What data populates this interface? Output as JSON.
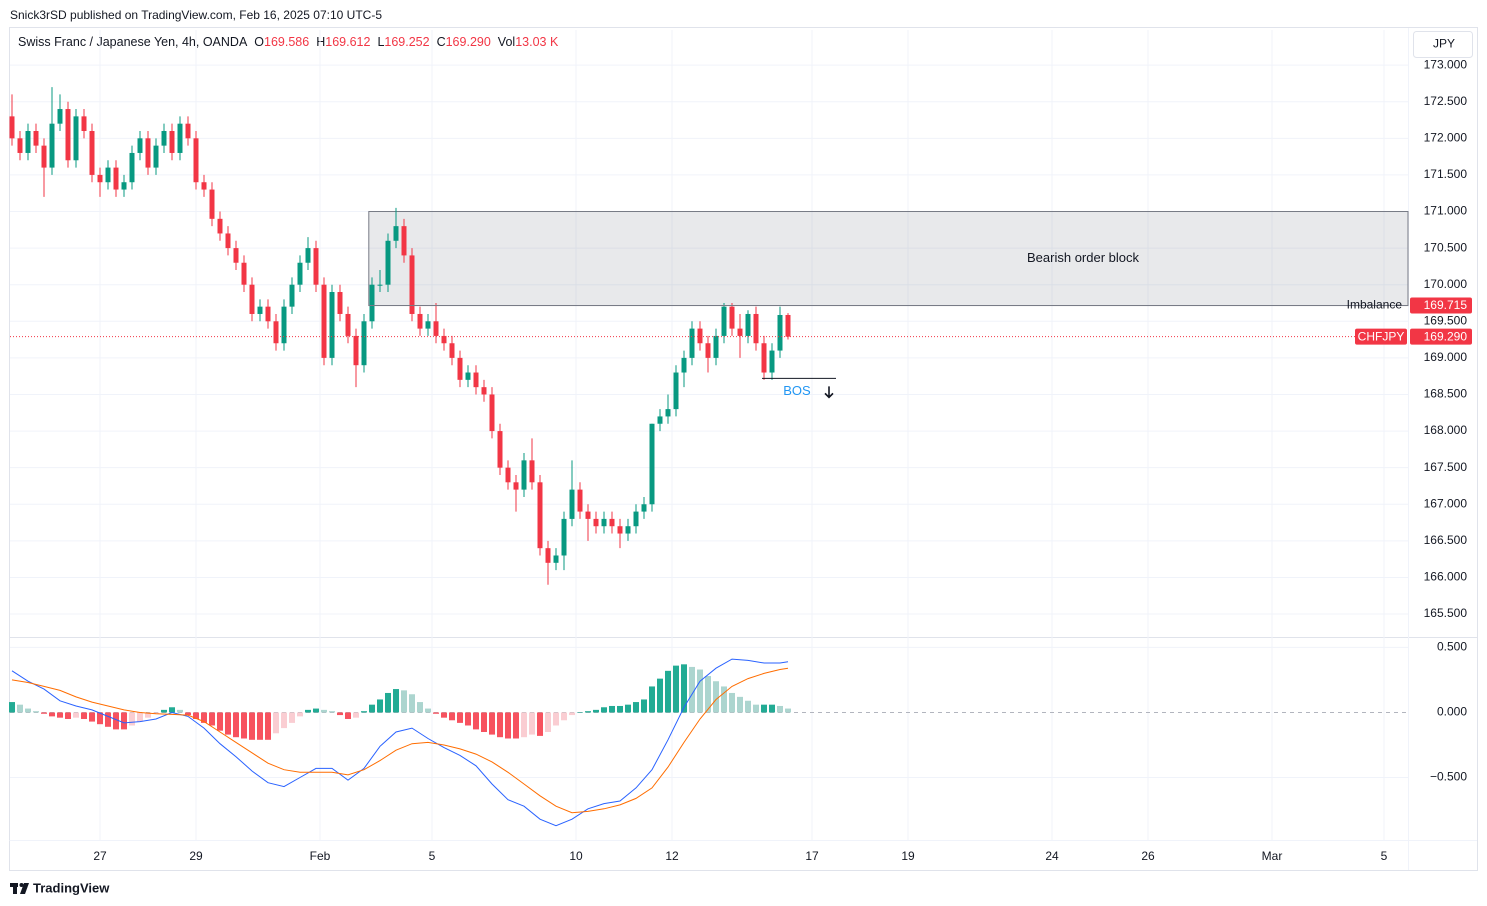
{
  "header": "Snick3rSD published on TradingView.com, Feb 16, 2025 07:10 UTC-5",
  "footer": "TradingView",
  "chart_data": {
    "type": "candlestick",
    "title": "Swiss Franc / Japanese Yen, 4h, OANDA",
    "legend": [
      {
        "key": "O",
        "value": "169.586"
      },
      {
        "key": "H",
        "value": "169.612"
      },
      {
        "key": "L",
        "value": "169.252"
      },
      {
        "key": "C",
        "value": "169.290"
      },
      {
        "key": "Vol",
        "value": "13.03 K"
      }
    ],
    "currency": "JPY",
    "up_color": "#089981",
    "down_color": "#f23645",
    "grid": true,
    "candles": [
      [
        172.3,
        172.6,
        171.9,
        172.0
      ],
      [
        172.0,
        172.1,
        171.7,
        171.8
      ],
      [
        171.8,
        172.2,
        171.7,
        172.1
      ],
      [
        172.1,
        172.2,
        171.8,
        171.9
      ],
      [
        171.9,
        172.0,
        171.2,
        171.6
      ],
      [
        171.6,
        172.7,
        171.5,
        172.2
      ],
      [
        172.2,
        172.6,
        172.1,
        172.4
      ],
      [
        172.4,
        172.5,
        171.6,
        171.7
      ],
      [
        171.7,
        172.4,
        171.6,
        172.3
      ],
      [
        172.3,
        172.4,
        172.0,
        172.1
      ],
      [
        172.1,
        172.2,
        171.4,
        171.5
      ],
      [
        171.5,
        171.6,
        171.2,
        171.4
      ],
      [
        171.4,
        171.7,
        171.3,
        171.6
      ],
      [
        171.6,
        171.7,
        171.2,
        171.3
      ],
      [
        171.3,
        171.5,
        171.2,
        171.4
      ],
      [
        171.4,
        171.9,
        171.3,
        171.8
      ],
      [
        171.8,
        172.1,
        171.7,
        172.0
      ],
      [
        172.0,
        172.1,
        171.5,
        171.6
      ],
      [
        171.6,
        172.0,
        171.5,
        171.9
      ],
      [
        171.9,
        172.2,
        171.8,
        172.1
      ],
      [
        172.1,
        172.2,
        171.7,
        171.8
      ],
      [
        171.8,
        172.3,
        171.7,
        172.2
      ],
      [
        172.2,
        172.3,
        171.9,
        172.0
      ],
      [
        172.0,
        172.1,
        171.3,
        171.4
      ],
      [
        171.4,
        171.5,
        171.2,
        171.3
      ],
      [
        171.3,
        171.4,
        170.8,
        170.9
      ],
      [
        170.9,
        171.0,
        170.6,
        170.7
      ],
      [
        170.7,
        170.8,
        170.4,
        170.5
      ],
      [
        170.5,
        170.6,
        170.2,
        170.3
      ],
      [
        170.3,
        170.4,
        169.9,
        170.0
      ],
      [
        170.0,
        170.1,
        169.5,
        169.6
      ],
      [
        169.6,
        169.8,
        169.5,
        169.7
      ],
      [
        169.7,
        169.8,
        169.4,
        169.5
      ],
      [
        169.5,
        169.6,
        169.1,
        169.2
      ],
      [
        169.2,
        169.8,
        169.1,
        169.7
      ],
      [
        169.7,
        170.1,
        169.6,
        170.0
      ],
      [
        170.0,
        170.4,
        169.9,
        170.3
      ],
      [
        170.3,
        170.65,
        170.2,
        170.5
      ],
      [
        170.5,
        170.6,
        169.9,
        170.0
      ],
      [
        170.0,
        170.1,
        168.9,
        169.0
      ],
      [
        169.0,
        170.0,
        168.9,
        169.9
      ],
      [
        169.9,
        170.0,
        169.5,
        169.6
      ],
      [
        169.6,
        169.7,
        169.2,
        169.3
      ],
      [
        169.3,
        169.4,
        168.6,
        168.9
      ],
      [
        168.9,
        169.6,
        168.8,
        169.5
      ],
      [
        169.5,
        170.1,
        169.4,
        170.0
      ],
      [
        170.0,
        170.2,
        169.9,
        170.0
      ],
      [
        170.0,
        170.7,
        169.9,
        170.6
      ],
      [
        170.6,
        171.05,
        170.5,
        170.8
      ],
      [
        170.8,
        170.9,
        170.3,
        170.4
      ],
      [
        170.4,
        170.5,
        169.5,
        169.6
      ],
      [
        169.6,
        169.7,
        169.3,
        169.4
      ],
      [
        169.4,
        169.6,
        169.3,
        169.5
      ],
      [
        169.5,
        169.75,
        169.2,
        169.3
      ],
      [
        169.3,
        169.4,
        169.1,
        169.2
      ],
      [
        169.2,
        169.3,
        168.9,
        169.0
      ],
      [
        169.0,
        169.1,
        168.6,
        168.7
      ],
      [
        168.7,
        168.9,
        168.6,
        168.8
      ],
      [
        168.8,
        168.9,
        168.5,
        168.6
      ],
      [
        168.6,
        168.7,
        168.4,
        168.5
      ],
      [
        168.5,
        168.6,
        167.9,
        168.0
      ],
      [
        168.0,
        168.1,
        167.4,
        167.5
      ],
      [
        167.5,
        167.6,
        167.2,
        167.3
      ],
      [
        167.3,
        167.4,
        166.9,
        167.2
      ],
      [
        167.2,
        167.7,
        167.1,
        167.6
      ],
      [
        167.6,
        167.9,
        167.2,
        167.3
      ],
      [
        167.3,
        167.4,
        166.3,
        166.4
      ],
      [
        166.4,
        166.5,
        165.9,
        166.2
      ],
      [
        166.2,
        166.4,
        166.1,
        166.3
      ],
      [
        166.3,
        166.9,
        166.1,
        166.8
      ],
      [
        166.8,
        167.6,
        166.7,
        167.2
      ],
      [
        167.2,
        167.3,
        166.8,
        166.9
      ],
      [
        166.9,
        167.0,
        166.5,
        166.8
      ],
      [
        166.8,
        166.9,
        166.6,
        166.7
      ],
      [
        166.7,
        166.9,
        166.6,
        166.8
      ],
      [
        166.8,
        166.9,
        166.6,
        166.7
      ],
      [
        166.7,
        166.8,
        166.4,
        166.6
      ],
      [
        166.6,
        166.8,
        166.5,
        166.7
      ],
      [
        166.7,
        167.0,
        166.6,
        166.9
      ],
      [
        166.9,
        167.1,
        166.8,
        167.0
      ],
      [
        167.0,
        168.1,
        166.9,
        168.1
      ],
      [
        168.1,
        168.3,
        168.0,
        168.2
      ],
      [
        168.2,
        168.5,
        168.1,
        168.3
      ],
      [
        168.3,
        168.9,
        168.2,
        168.8
      ],
      [
        168.8,
        169.1,
        168.6,
        169.0
      ],
      [
        169.0,
        169.5,
        168.9,
        169.4
      ],
      [
        169.4,
        169.5,
        169.1,
        169.2
      ],
      [
        169.2,
        169.3,
        168.8,
        169.0
      ],
      [
        169.0,
        169.4,
        168.9,
        169.3
      ],
      [
        169.3,
        169.75,
        169.2,
        169.7
      ],
      [
        169.7,
        169.75,
        169.3,
        169.4
      ],
      [
        169.4,
        169.6,
        169.0,
        169.3
      ],
      [
        169.3,
        169.65,
        169.2,
        169.6
      ],
      [
        169.6,
        169.7,
        169.1,
        169.2
      ],
      [
        169.2,
        169.3,
        168.7,
        168.8
      ],
      [
        168.8,
        169.2,
        168.7,
        169.1
      ],
      [
        169.1,
        169.7,
        169.0,
        169.586
      ],
      [
        169.586,
        169.612,
        169.252,
        169.29
      ]
    ],
    "xlim": [
      -0.25,
      174.5
    ],
    "xticks": [
      {
        "value": 11,
        "label": "27"
      },
      {
        "value": 23,
        "label": "29"
      },
      {
        "value": 38.5,
        "label": "Feb"
      },
      {
        "value": 52.5,
        "label": "5"
      },
      {
        "value": 70.5,
        "label": "10"
      },
      {
        "value": 82.5,
        "label": "12"
      },
      {
        "value": 100,
        "label": "17"
      },
      {
        "value": 112,
        "label": "19"
      },
      {
        "value": 130,
        "label": "24"
      },
      {
        "value": 142,
        "label": "26"
      },
      {
        "value": 157.5,
        "label": "Mar"
      },
      {
        "value": 171.5,
        "label": "5"
      }
    ],
    "ylim": [
      165.2,
      173.48
    ],
    "yticks": [
      {
        "value": 165.5,
        "label": "165.500"
      },
      {
        "value": 166,
        "label": "166.000"
      },
      {
        "value": 166.5,
        "label": "166.500"
      },
      {
        "value": 167,
        "label": "167.000"
      },
      {
        "value": 167.5,
        "label": "167.500"
      },
      {
        "value": 168,
        "label": "168.000"
      },
      {
        "value": 168.5,
        "label": "168.500"
      },
      {
        "value": 169,
        "label": "169.000"
      },
      {
        "value": 169.5,
        "label": "169.500"
      },
      {
        "value": 170,
        "label": "170.000"
      },
      {
        "value": 170.5,
        "label": "170.500"
      },
      {
        "value": 171,
        "label": "171.000"
      },
      {
        "value": 171.5,
        "label": "171.500"
      },
      {
        "value": 172,
        "label": "172.000"
      },
      {
        "value": 172.5,
        "label": "172.500"
      },
      {
        "value": 173,
        "label": "173.000"
      }
    ],
    "order_block": {
      "label": "Bearish order block",
      "top": 171.0,
      "bottom": 169.715,
      "x_start": 44.6
    },
    "imbalance": {
      "name": "Imbalance",
      "value": 169.715,
      "label": "169.715",
      "color": "#f23645"
    },
    "last_price": {
      "symbol": "CHFJPY",
      "value": 169.29,
      "label": "169.290",
      "color": "#f23645"
    },
    "bos": {
      "label": "BOS",
      "value": 168.72,
      "x_start": 93.75,
      "x_end": 103,
      "color": "#2196f3"
    },
    "macd": {
      "ylim": [
        -0.98,
        0.58
      ],
      "yticks": [
        {
          "value": 0.5,
          "label": "0.500"
        },
        {
          "value": 0,
          "label": "0.000"
        },
        {
          "value": -0.5,
          "label": "−0.500"
        }
      ],
      "histogram_colors": [
        "#22ab94",
        "#acd5cf",
        "#f7525f",
        "#facdd2"
      ],
      "histogram": [
        0.08,
        0.06,
        0.03,
        0.01,
        -0.01,
        -0.03,
        -0.04,
        -0.05,
        -0.04,
        -0.05,
        -0.07,
        -0.09,
        -0.11,
        -0.13,
        -0.13,
        -0.1,
        -0.07,
        -0.04,
        -0.01,
        0.02,
        0.04,
        0.02,
        -0.02,
        -0.05,
        -0.08,
        -0.1,
        -0.14,
        -0.17,
        -0.19,
        -0.2,
        -0.21,
        -0.21,
        -0.21,
        -0.16,
        -0.12,
        -0.08,
        -0.03,
        0.02,
        0.03,
        0.02,
        0.01,
        -0.02,
        -0.05,
        -0.04,
        0.01,
        0.06,
        0.1,
        0.15,
        0.18,
        0.17,
        0.14,
        0.08,
        0.03,
        -0.01,
        -0.04,
        -0.06,
        -0.08,
        -0.1,
        -0.13,
        -0.15,
        -0.17,
        -0.19,
        -0.2,
        -0.2,
        -0.19,
        -0.17,
        -0.18,
        -0.15,
        -0.1,
        -0.06,
        -0.02,
        0.0,
        0.01,
        0.02,
        0.04,
        0.05,
        0.05,
        0.06,
        0.08,
        0.1,
        0.2,
        0.26,
        0.32,
        0.36,
        0.37,
        0.35,
        0.33,
        0.28,
        0.24,
        0.2,
        0.15,
        0.12,
        0.09,
        0.06,
        0.06,
        0.06,
        0.05,
        0.03
      ],
      "x": [
        0,
        2,
        4,
        6,
        8,
        10,
        12,
        14,
        16,
        18,
        20,
        22,
        24,
        26,
        28,
        30,
        32,
        34,
        36,
        38,
        40,
        42,
        44,
        46,
        48,
        50,
        52,
        54,
        56,
        58,
        60,
        62,
        64,
        66,
        68,
        70,
        72,
        74,
        76,
        78,
        80,
        82,
        84,
        86,
        88,
        90,
        92,
        94,
        96,
        97
      ],
      "series": [
        {
          "color": "#2962ff",
          "values": [
            0.32,
            0.24,
            0.18,
            0.09,
            0.05,
            0.02,
            -0.03,
            -0.08,
            -0.07,
            -0.05,
            0.0,
            -0.03,
            -0.12,
            -0.24,
            -0.34,
            -0.45,
            -0.54,
            -0.57,
            -0.5,
            -0.43,
            -0.43,
            -0.52,
            -0.43,
            -0.26,
            -0.15,
            -0.12,
            -0.2,
            -0.27,
            -0.33,
            -0.41,
            -0.55,
            -0.67,
            -0.72,
            -0.82,
            -0.87,
            -0.82,
            -0.74,
            -0.7,
            -0.68,
            -0.58,
            -0.44,
            -0.21,
            0.04,
            0.24,
            0.34,
            0.41,
            0.4,
            0.38,
            0.38,
            0.39
          ]
        },
        {
          "color": "#ff6d00",
          "values": [
            0.25,
            0.23,
            0.2,
            0.17,
            0.12,
            0.08,
            0.05,
            0.02,
            0.0,
            -0.01,
            -0.015,
            -0.02,
            -0.07,
            -0.15,
            -0.23,
            -0.31,
            -0.39,
            -0.44,
            -0.46,
            -0.46,
            -0.46,
            -0.48,
            -0.44,
            -0.37,
            -0.29,
            -0.24,
            -0.23,
            -0.25,
            -0.28,
            -0.32,
            -0.38,
            -0.46,
            -0.55,
            -0.64,
            -0.72,
            -0.77,
            -0.76,
            -0.74,
            -0.71,
            -0.66,
            -0.58,
            -0.42,
            -0.23,
            -0.05,
            0.1,
            0.2,
            0.26,
            0.3,
            0.33,
            0.34
          ]
        }
      ]
    }
  }
}
